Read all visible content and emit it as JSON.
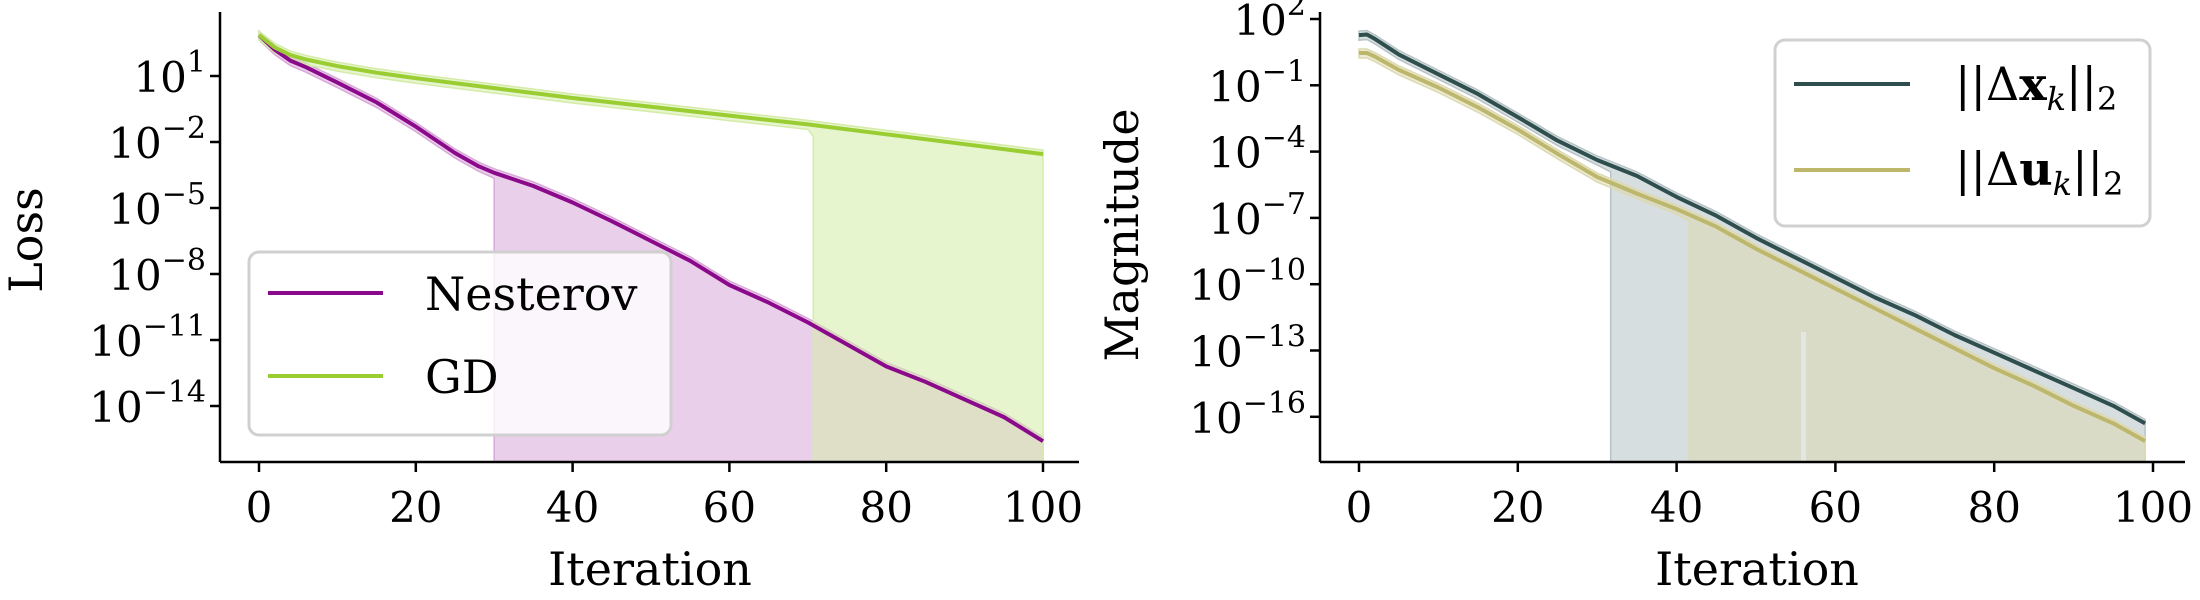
{
  "chart_data": [
    {
      "type": "line",
      "title": "",
      "xlabel": "Iteration",
      "ylabel": "Loss",
      "yscale": "log",
      "xlim": [
        -3.5,
        105
      ],
      "xticks": [
        0,
        20,
        40,
        60,
        80,
        100
      ],
      "yticks_exp": [
        1,
        -2,
        -5,
        -8,
        -11,
        -14
      ],
      "grid": false,
      "legend_position": "lower left",
      "series": [
        {
          "name": "Nesterov",
          "color": "#8b0a8b",
          "fill_color": "#d9a8d9",
          "x": [
            0,
            2,
            4,
            6,
            10,
            15,
            20,
            25,
            28,
            30,
            35,
            40,
            45,
            50,
            55,
            60,
            65,
            70,
            75,
            80,
            85,
            90,
            95,
            100
          ],
          "log10_values": [
            2.86,
            2.2,
            1.7,
            1.4,
            0.7,
            -0.2,
            -1.3,
            -2.5,
            -3.1,
            -3.4,
            -4.0,
            -4.75,
            -5.6,
            -6.5,
            -7.4,
            -8.5,
            -9.3,
            -10.2,
            -11.2,
            -12.2,
            -12.9,
            -13.7,
            -14.5,
            -15.6
          ],
          "band_lower_drop_at": 30
        },
        {
          "name": "GD",
          "color": "#9acd32",
          "fill_color": "#d4eca8",
          "x": [
            0,
            2,
            4,
            6,
            10,
            15,
            20,
            30,
            40,
            50,
            60,
            70,
            80,
            90,
            100
          ],
          "log10_values": [
            2.86,
            2.3,
            1.95,
            1.75,
            1.45,
            1.15,
            0.9,
            0.45,
            0.0,
            -0.4,
            -0.8,
            -1.2,
            -1.65,
            -2.1,
            -2.55
          ],
          "band_lower_drop_at": 70.7
        }
      ]
    },
    {
      "type": "line",
      "title": "",
      "xlabel": "Iteration",
      "ylabel": "Magnitude",
      "yscale": "log",
      "xlim": [
        -3.5,
        103
      ],
      "xticks": [
        0,
        20,
        40,
        60,
        80,
        100
      ],
      "yticks_exp": [
        2,
        -1,
        -4,
        -7,
        -10,
        -13,
        -16
      ],
      "grid": false,
      "legend_position": "upper right",
      "series": [
        {
          "name": "||Δx_k||_2",
          "color": "#2f4f4f",
          "fill_color": "#b7c3c6",
          "x": [
            0,
            1,
            2,
            5,
            10,
            15,
            20,
            25,
            30,
            35,
            40,
            45,
            50,
            55,
            60,
            65,
            70,
            75,
            80,
            85,
            90,
            95,
            99
          ],
          "log10_values": [
            1.27,
            1.3,
            1.1,
            0.4,
            -0.5,
            -1.4,
            -2.44,
            -3.5,
            -4.38,
            -5.1,
            -6.05,
            -6.9,
            -7.9,
            -8.8,
            -9.7,
            -10.6,
            -11.4,
            -12.3,
            -13.1,
            -13.9,
            -14.7,
            -15.5,
            -16.3
          ],
          "band_lower_drop_at": 31.7
        },
        {
          "name": "||Δu_k||_2",
          "color": "#bdb76b",
          "fill_color": "#ddd9b0",
          "x": [
            0,
            1,
            2,
            5,
            10,
            15,
            20,
            25,
            30,
            35,
            40,
            45,
            50,
            55,
            60,
            65,
            70,
            75,
            80,
            85,
            90,
            95,
            99
          ],
          "log10_values": [
            0.46,
            0.46,
            0.3,
            -0.3,
            -1.1,
            -2.0,
            -3.0,
            -4.1,
            -5.15,
            -5.9,
            -6.6,
            -7.4,
            -8.4,
            -9.3,
            -10.2,
            -11.1,
            -12.0,
            -12.9,
            -13.8,
            -14.6,
            -15.5,
            -16.3,
            -17.1
          ],
          "band_lower_drop_at": 41.6
        }
      ]
    }
  ],
  "left_chart": {
    "ylabel": "Loss",
    "xlabel": "Iteration",
    "xtick_labels": [
      "0",
      "20",
      "40",
      "60",
      "80",
      "100"
    ],
    "ytick_base": "10",
    "ytick_exponents": [
      "1",
      "−2",
      "−5",
      "−8",
      "−11",
      "−14"
    ],
    "legend": [
      {
        "label": "Nesterov",
        "color": "#8b0a8b"
      },
      {
        "label": "GD",
        "color": "#9acd32"
      }
    ]
  },
  "right_chart": {
    "ylabel": "Magnitude",
    "xlabel": "Iteration",
    "xtick_labels": [
      "0",
      "20",
      "40",
      "60",
      "80",
      "100"
    ],
    "ytick_base": "10",
    "ytick_exponents": [
      "2",
      "−1",
      "−4",
      "−7",
      "−10",
      "−13",
      "−16"
    ],
    "legend": [
      {
        "label_prefix": "||Δ",
        "label_var": "x",
        "label_sub": "k",
        "label_suffix": "||",
        "label_norm": "2",
        "color": "#2f4f4f"
      },
      {
        "label_prefix": "||Δ",
        "label_var": "u",
        "label_sub": "k",
        "label_suffix": "||",
        "label_norm": "2",
        "color": "#bdb76b"
      }
    ]
  }
}
